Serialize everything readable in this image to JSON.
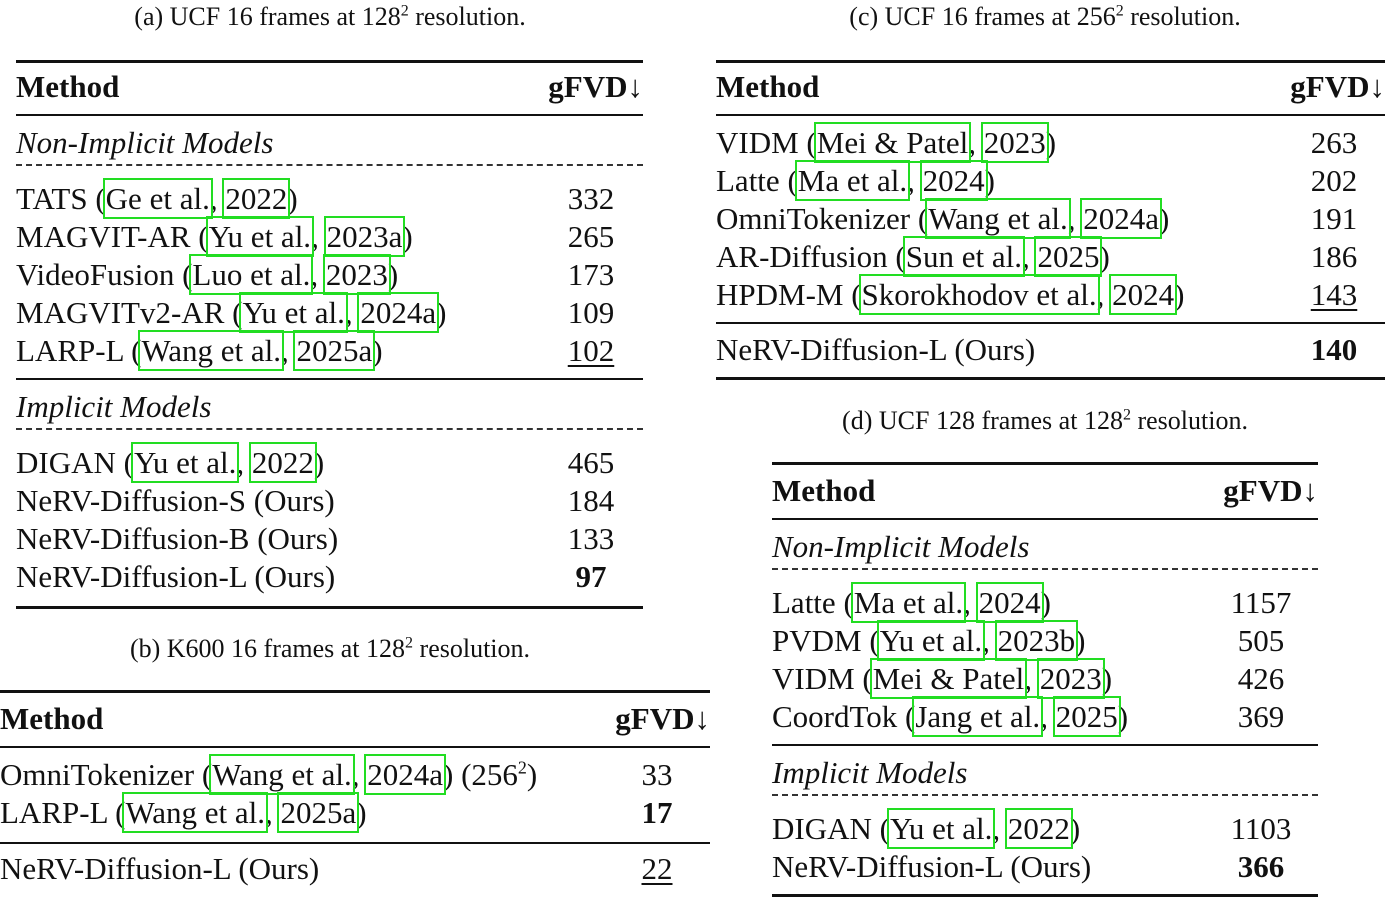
{
  "table_a": {
    "caption_pre": "(a) UCF 16 frames at 128",
    "caption_sup": "2",
    "caption_post": " resolution.",
    "header_method": "Method",
    "header_metric": "gFVD↓",
    "section_non_implicit": "Non-Implicit Models",
    "section_implicit": "Implicit Models",
    "rows_non_implicit": [
      {
        "name": "TATS",
        "author": "Ge et al.",
        "year": "2022",
        "value": "332"
      },
      {
        "name": "MAGVIT-AR",
        "author": "Yu et al.",
        "year": "2023a",
        "value": "265"
      },
      {
        "name": "VideoFusion",
        "author": "Luo et al.",
        "year": "2023",
        "value": "173"
      },
      {
        "name": "MAGVITv2-AR",
        "author": "Yu et al.",
        "year": "2024a",
        "value": "109"
      },
      {
        "name": "LARP-L",
        "author": "Wang et al.",
        "year": "2025a",
        "value": "102",
        "style": "underline"
      }
    ],
    "rows_implicit": [
      {
        "name": "DIGAN",
        "author": "Yu et al.",
        "year": "2022",
        "value": "465"
      },
      {
        "name": "NeRV-Diffusion-S (Ours)",
        "value": "184"
      },
      {
        "name": "NeRV-Diffusion-B (Ours)",
        "value": "133"
      },
      {
        "name": "NeRV-Diffusion-L (Ours)",
        "value": "97",
        "style": "bold"
      }
    ]
  },
  "table_b": {
    "caption_pre": "(b) K600 16 frames at 128",
    "caption_sup": "2",
    "caption_post": " resolution.",
    "header_method": "Method",
    "header_metric": "gFVD↓",
    "rows": [
      {
        "name": "OmniTokenizer",
        "author": "Wang et al.",
        "year": "2024a",
        "suffix_pre": " (256",
        "suffix_sup": "2",
        "suffix_post": ")",
        "value": "33"
      },
      {
        "name": "LARP-L",
        "author": "Wang et al.",
        "year": "2025a",
        "value": "17",
        "style": "bold"
      }
    ],
    "ours": {
      "name": "NeRV-Diffusion-L (Ours)",
      "value": "22",
      "style": "underline"
    }
  },
  "table_c": {
    "caption_pre": "(c) UCF 16 frames at 256",
    "caption_sup": "2",
    "caption_post": " resolution.",
    "header_method": "Method",
    "header_metric": "gFVD↓",
    "rows": [
      {
        "name": "VIDM",
        "author": "Mei & Patel",
        "year": "2023",
        "value": "263"
      },
      {
        "name": "Latte",
        "author": "Ma et al.",
        "year": "2024",
        "value": "202"
      },
      {
        "name": "OmniTokenizer",
        "author": "Wang et al.",
        "year": "2024a",
        "value": "191"
      },
      {
        "name": "AR-Diffusion",
        "author": "Sun et al.",
        "year": "2025",
        "value": "186"
      },
      {
        "name": "HPDM-M",
        "author": "Skorokhodov et al.",
        "year": "2024",
        "value": "143",
        "style": "underline"
      }
    ],
    "ours": {
      "name": "NeRV-Diffusion-L (Ours)",
      "value": "140",
      "style": "bold"
    }
  },
  "table_d": {
    "caption_pre": "(d) UCF 128 frames at 128",
    "caption_sup": "2",
    "caption_post": " resolution.",
    "header_method": "Method",
    "header_metric": "gFVD↓",
    "section_non_implicit": "Non-Implicit Models",
    "section_implicit": "Implicit Models",
    "rows_non_implicit": [
      {
        "name": "Latte",
        "author": "Ma et al.",
        "year": "2024",
        "value": "1157"
      },
      {
        "name": "PVDM",
        "author": "Yu et al.",
        "year": "2023b",
        "value": "505"
      },
      {
        "name": "VIDM",
        "author": "Mei & Patel",
        "year": "2023",
        "value": "426"
      },
      {
        "name": "CoordTok",
        "author": "Jang et al.",
        "year": "2025",
        "value": "369"
      }
    ],
    "rows_implicit": [
      {
        "name": "DIGAN",
        "author": "Yu et al.",
        "year": "2022",
        "value": "1103"
      },
      {
        "name": "NeRV-Diffusion-L (Ours)",
        "value": "366",
        "style": "bold"
      }
    ]
  }
}
